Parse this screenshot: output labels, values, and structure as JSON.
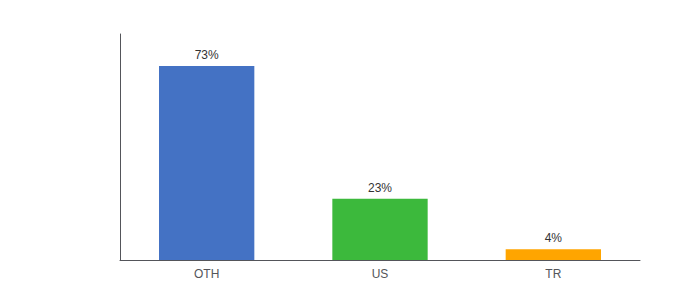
{
  "chart_data": {
    "type": "bar",
    "categories": [
      "OTH",
      "US",
      "TR"
    ],
    "values": [
      73,
      23,
      4
    ],
    "value_labels": [
      "73%",
      "23%",
      "4%"
    ],
    "colors": [
      "#4472C4",
      "#3CB93C",
      "#FFA500"
    ],
    "ylim": [
      0,
      85
    ],
    "grid": false,
    "data_labels": true,
    "tick_labels": "x"
  }
}
